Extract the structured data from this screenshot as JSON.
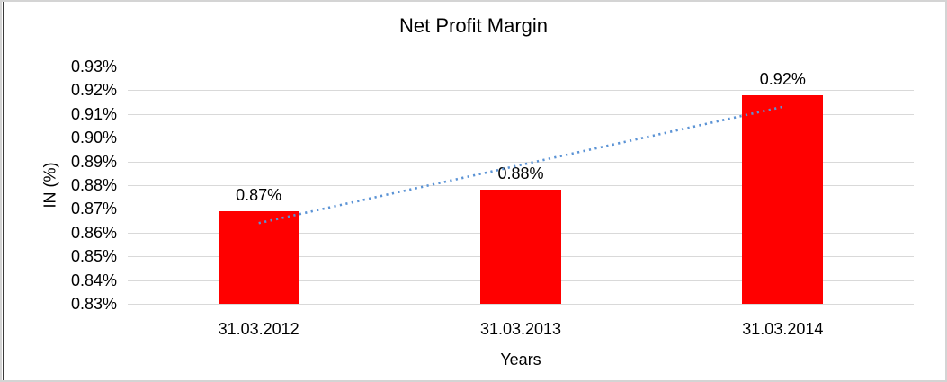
{
  "frame": {
    "outer_border_color": "#d4d4d4",
    "left_line_color": "#3a3a3a",
    "background": "#ffffff"
  },
  "chart_data": {
    "type": "bar",
    "title": "Net Profit Margin",
    "xlabel": "Years",
    "ylabel": "IN (%)",
    "categories": [
      "31.03.2012",
      "31.03.2013",
      "31.03.2014"
    ],
    "values": [
      0.869,
      0.878,
      0.918
    ],
    "data_labels": [
      "0.87%",
      "0.88%",
      "0.92%"
    ],
    "ylim": [
      0.83,
      0.93
    ],
    "ytick_step": 0.01,
    "ytick_labels_top_to_bottom": [
      "0.93%",
      "0.92%",
      "0.91%",
      "0.90%",
      "0.89%",
      "0.88%",
      "0.87%",
      "0.86%",
      "0.85%",
      "0.84%",
      "0.83%"
    ],
    "grid": true,
    "legend": "none",
    "bar_color": "#ff0000",
    "text_color": "#000000",
    "gridline_color": "#d9d9d9",
    "trendline": {
      "style": "dotted",
      "color": "#5b93d5",
      "start_value": 0.864,
      "end_value": 0.913
    }
  }
}
